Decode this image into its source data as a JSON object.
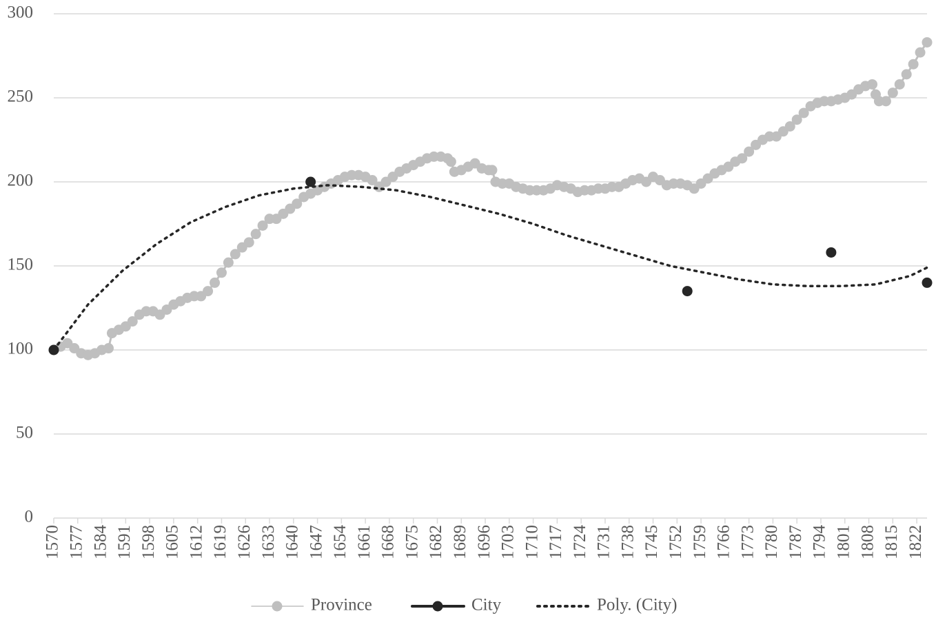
{
  "chart_data": {
    "type": "line",
    "xlim": [
      1570,
      1825
    ],
    "xticks": [
      1570,
      1577,
      1584,
      1591,
      1598,
      1605,
      1612,
      1619,
      1626,
      1633,
      1640,
      1647,
      1654,
      1661,
      1668,
      1675,
      1682,
      1689,
      1696,
      1703,
      1710,
      1717,
      1724,
      1731,
      1738,
      1745,
      1752,
      1759,
      1766,
      1773,
      1780,
      1787,
      1794,
      1801,
      1808,
      1815,
      1822
    ],
    "ylim": [
      0,
      300
    ],
    "yticks": [
      0,
      50,
      100,
      150,
      200,
      250,
      300
    ],
    "grid": true,
    "legend": "bottom",
    "series": [
      {
        "name": "Province",
        "color": "#bfbfbf",
        "line": "solid",
        "marker": true,
        "x": [
          1570,
          1572,
          1574,
          1576,
          1578,
          1580,
          1582,
          1584,
          1586,
          1587,
          1589,
          1591,
          1593,
          1595,
          1597,
          1599,
          1601,
          1603,
          1605,
          1607,
          1609,
          1611,
          1613,
          1615,
          1617,
          1619,
          1621,
          1623,
          1625,
          1627,
          1629,
          1631,
          1633,
          1635,
          1637,
          1639,
          1641,
          1643,
          1645,
          1647,
          1649,
          1651,
          1653,
          1655,
          1657,
          1659,
          1661,
          1663,
          1665,
          1667,
          1669,
          1671,
          1673,
          1675,
          1677,
          1679,
          1681,
          1683,
          1685,
          1686,
          1687,
          1689,
          1691,
          1693,
          1695,
          1697,
          1698,
          1699,
          1701,
          1703,
          1705,
          1707,
          1709,
          1711,
          1713,
          1715,
          1717,
          1719,
          1721,
          1723,
          1725,
          1727,
          1729,
          1731,
          1733,
          1735,
          1737,
          1739,
          1741,
          1743,
          1745,
          1747,
          1749,
          1751,
          1753,
          1755,
          1757,
          1759,
          1761,
          1763,
          1765,
          1767,
          1769,
          1771,
          1773,
          1775,
          1777,
          1779,
          1781,
          1783,
          1785,
          1787,
          1789,
          1791,
          1793,
          1795,
          1797,
          1799,
          1801,
          1803,
          1805,
          1807,
          1809,
          1810,
          1811,
          1813,
          1815,
          1817,
          1819,
          1821,
          1823,
          1825
        ],
        "values": [
          100,
          102,
          104,
          101,
          98,
          97,
          98,
          100,
          101,
          110,
          112,
          114,
          117,
          121,
          123,
          123,
          121,
          124,
          127,
          129,
          131,
          132,
          132,
          135,
          140,
          146,
          152,
          157,
          161,
          164,
          169,
          174,
          178,
          178,
          181,
          184,
          187,
          191,
          193,
          195,
          197,
          199,
          201,
          203,
          204,
          204,
          203,
          201,
          197,
          200,
          203,
          206,
          208,
          210,
          212,
          214,
          215,
          215,
          214,
          212,
          206,
          207,
          209,
          211,
          208,
          207,
          207,
          200,
          199,
          199,
          197,
          196,
          195,
          195,
          195,
          196,
          198,
          197,
          196,
          194,
          195,
          195,
          196,
          196,
          197,
          197,
          199,
          201,
          202,
          200,
          203,
          201,
          198,
          199,
          199,
          198,
          196,
          199,
          202,
          205,
          207,
          209,
          212,
          214,
          218,
          222,
          225,
          227,
          227,
          230,
          233,
          237,
          241,
          245,
          247,
          248,
          248,
          249,
          250,
          252,
          255,
          257,
          258,
          252,
          248,
          248,
          253,
          258,
          264,
          270,
          277,
          283
        ]
      },
      {
        "name": "City",
        "color": "#262626",
        "line": "none",
        "marker": true,
        "x": [
          1570,
          1645,
          1755,
          1797,
          1825
        ],
        "values": [
          100,
          200,
          135,
          158,
          140
        ]
      },
      {
        "name": "Poly. (City)",
        "color": "#262626",
        "line": "dotted",
        "marker": false,
        "x": [
          1570,
          1580,
          1590,
          1600,
          1610,
          1620,
          1630,
          1640,
          1650,
          1660,
          1670,
          1680,
          1690,
          1700,
          1710,
          1720,
          1730,
          1740,
          1750,
          1760,
          1770,
          1780,
          1790,
          1800,
          1810,
          1820,
          1825
        ],
        "values": [
          100,
          127,
          147,
          163,
          176,
          185,
          192,
          196,
          198,
          197,
          195,
          191,
          186,
          181,
          175,
          168,
          162,
          156,
          150,
          146,
          142,
          139,
          138,
          138,
          139,
          144,
          149
        ]
      }
    ]
  }
}
